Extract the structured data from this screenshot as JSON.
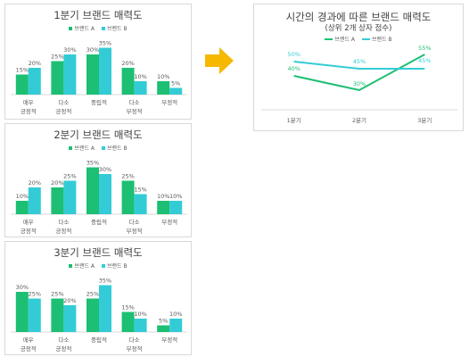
{
  "colors": {
    "brand_a": "#1cbf73",
    "brand_b": "#33ccd6",
    "arrow": "#f6b800",
    "grid": "#d9d9d9",
    "text": "#595959"
  },
  "icons": {
    "arrow": "right-arrow-icon"
  },
  "chart_data": [
    {
      "type": "bar",
      "title": "1분기 브랜드 매력도",
      "categories": [
        "매우\n긍정적",
        "다소\n긍정적",
        "중립적",
        "다소\n부정적",
        "부정적"
      ],
      "series": [
        {
          "name": "브랜드 A",
          "values": [
            15,
            25,
            30,
            20,
            10
          ]
        },
        {
          "name": "브랜드 B",
          "values": [
            20,
            30,
            35,
            10,
            5
          ]
        }
      ],
      "value_labels": [
        [
          "15%",
          "25%",
          "30%",
          "20%",
          "10%"
        ],
        [
          "20%",
          "30%",
          "35%",
          "10%",
          "5%"
        ]
      ],
      "ylim": [
        0,
        40
      ],
      "legend": "top"
    },
    {
      "type": "bar",
      "title": "2분기 브랜드 매력도",
      "categories": [
        "매우\n긍정적",
        "다소\n긍정적",
        "중립적",
        "다소\n부정적",
        "부정적"
      ],
      "series": [
        {
          "name": "브랜드 A",
          "values": [
            10,
            20,
            35,
            25,
            10
          ]
        },
        {
          "name": "브랜드 B",
          "values": [
            20,
            25,
            30,
            15,
            10
          ]
        }
      ],
      "value_labels": [
        [
          "10%",
          "20%",
          "35%",
          "25%",
          "10%"
        ],
        [
          "20%",
          "25%",
          "30%",
          "15%",
          "10%"
        ]
      ],
      "ylim": [
        0,
        40
      ],
      "legend": "top"
    },
    {
      "type": "bar",
      "title": "3분기 브랜드 매력도",
      "categories": [
        "매우\n긍정적",
        "다소\n긍정적",
        "중립적",
        "다소\n부정적",
        "부정적"
      ],
      "series": [
        {
          "name": "브랜드 A",
          "values": [
            30,
            25,
            25,
            15,
            5
          ]
        },
        {
          "name": "브랜드 B",
          "values": [
            25,
            20,
            35,
            10,
            10
          ]
        }
      ],
      "value_labels": [
        [
          "30%",
          "25%",
          "25%",
          "15%",
          "5%"
        ],
        [
          "25%",
          "20%",
          "35%",
          "10%",
          "10%"
        ]
      ],
      "ylim": [
        0,
        40
      ],
      "legend": "top"
    },
    {
      "type": "line",
      "title": "시간의 경과에 따른 브랜드 매력도",
      "subtitle": "(상위 2개 상자 점수)",
      "categories": [
        "1분기",
        "2분기",
        "3분기"
      ],
      "series": [
        {
          "name": "브랜드 A",
          "values": [
            40,
            30,
            55
          ]
        },
        {
          "name": "브랜드 B",
          "values": [
            50,
            45,
            45
          ]
        }
      ],
      "value_labels": [
        [
          "40%",
          "30%",
          "55%"
        ],
        [
          "50%",
          "45%",
          "45%"
        ]
      ],
      "ylim": [
        20,
        60
      ],
      "legend": "top"
    }
  ]
}
